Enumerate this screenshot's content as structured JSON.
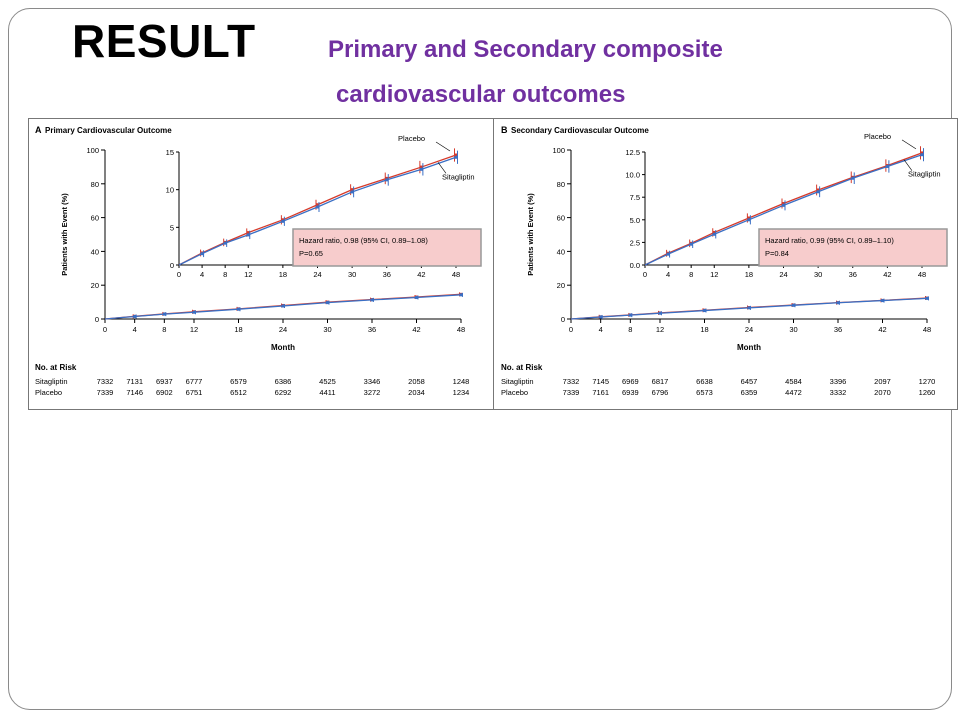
{
  "slide": {
    "title": "RESULT",
    "subtitle_line1": "Primary and Secondary composite",
    "subtitle_line2": "cardiovascular outcomes",
    "title_color": "#000000",
    "subtitle_color": "#7030a0"
  },
  "colors": {
    "placebo": "#d63a2a",
    "sitagliptin": "#3a6fc4",
    "hr_box_fill": "#f7cccc",
    "hr_box_border": "#999999"
  },
  "chart_data": [
    {
      "type": "line",
      "panel_label": "A",
      "title": "Primary Cardiovascular Outcome",
      "xlabel": "Month",
      "ylabel": "Patients with Event (%)",
      "x_ticks": [
        "0",
        "4",
        "8",
        "12",
        "18",
        "24",
        "30",
        "36",
        "42",
        "48"
      ],
      "y_ticks": [
        "0",
        "20",
        "40",
        "60",
        "80",
        "100"
      ],
      "ylim": [
        0,
        100
      ],
      "xlim": [
        0,
        48
      ],
      "x": [
        0,
        4,
        8,
        12,
        18,
        24,
        30,
        36,
        42,
        48
      ],
      "series": [
        {
          "name": "Placebo",
          "values": [
            0,
            1.6,
            3.0,
            4.3,
            6.0,
            8.0,
            10.0,
            11.5,
            13.0,
            14.6
          ]
        },
        {
          "name": "Sitagliptin",
          "values": [
            0,
            1.5,
            2.9,
            4.0,
            5.8,
            7.7,
            9.7,
            11.3,
            12.7,
            14.3
          ]
        }
      ],
      "inset": {
        "y_ticks": [
          "0",
          "5",
          "10",
          "15"
        ],
        "ylim": [
          0,
          15
        ],
        "x_ticks": [
          "0",
          "4",
          "8",
          "12",
          "18",
          "24",
          "30",
          "36",
          "42",
          "48"
        ]
      },
      "annotation": {
        "line1": "Hazard ratio, 0.98 (95% CI, 0.89–1.08)",
        "line2": "P=0.65"
      },
      "risk_table": {
        "header": "No. at Risk",
        "rows": [
          {
            "label": "Sitagliptin",
            "values": [
              "7332",
              "7131",
              "6937",
              "6777",
              "6579",
              "6386",
              "4525",
              "3346",
              "2058",
              "1248"
            ]
          },
          {
            "label": "Placebo",
            "values": [
              "7339",
              "7146",
              "6902",
              "6751",
              "6512",
              "6292",
              "4411",
              "3272",
              "2034",
              "1234"
            ]
          }
        ]
      }
    },
    {
      "type": "line",
      "panel_label": "B",
      "title": "Secondary Cardiovascular Outcome",
      "xlabel": "Month",
      "ylabel": "Patients with Event (%)",
      "x_ticks": [
        "0",
        "4",
        "8",
        "12",
        "18",
        "24",
        "30",
        "36",
        "42",
        "48"
      ],
      "y_ticks": [
        "0",
        "20",
        "40",
        "60",
        "80",
        "100"
      ],
      "ylim": [
        0,
        100
      ],
      "xlim": [
        0,
        48
      ],
      "x": [
        0,
        4,
        8,
        12,
        18,
        24,
        30,
        36,
        42,
        48
      ],
      "series": [
        {
          "name": "Placebo",
          "values": [
            0,
            1.3,
            2.4,
            3.6,
            5.2,
            6.8,
            8.3,
            9.7,
            11.0,
            12.4
          ]
        },
        {
          "name": "Sitagliptin",
          "values": [
            0,
            1.2,
            2.3,
            3.4,
            5.0,
            6.6,
            8.1,
            9.6,
            10.9,
            12.2
          ]
        }
      ],
      "inset": {
        "y_ticks": [
          "0.0",
          "2.5",
          "5.0",
          "7.5",
          "10.0",
          "12.5"
        ],
        "ylim": [
          0,
          12.5
        ],
        "x_ticks": [
          "0",
          "4",
          "8",
          "12",
          "18",
          "24",
          "30",
          "36",
          "42",
          "48"
        ]
      },
      "annotation": {
        "line1": "Hazard ratio, 0.99 (95% CI, 0.89–1.10)",
        "line2": "P=0.84"
      },
      "risk_table": {
        "header": "No. at Risk",
        "rows": [
          {
            "label": "Sitagliptin",
            "values": [
              "7332",
              "7145",
              "6969",
              "6817",
              "6638",
              "6457",
              "4584",
              "3396",
              "2097",
              "1270"
            ]
          },
          {
            "label": "Placebo",
            "values": [
              "7339",
              "7161",
              "6939",
              "6796",
              "6573",
              "6359",
              "4472",
              "3332",
              "2070",
              "1260"
            ]
          }
        ]
      }
    }
  ]
}
